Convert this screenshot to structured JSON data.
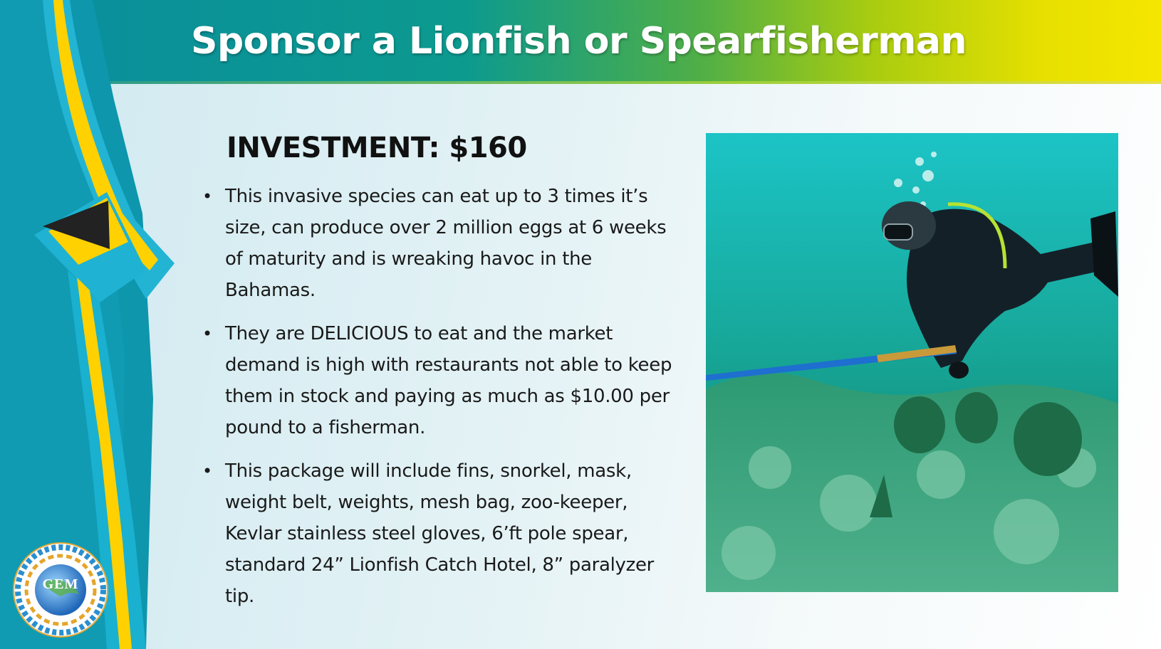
{
  "slide": {
    "title": "Sponsor a Lionfish or Spearfisherman",
    "heading": "INVESTMENT: $160",
    "bullets": [
      "This invasive species can eat up to 3 times it’s size, can produce over 2 million eggs at 6 weeks of maturity and is wreaking havoc in the Bahamas.",
      "They are DELICIOUS to eat and the market demand is high with restaurants not able to keep them in stock and paying as much as $10.00 per pound to a fisherman.",
      "This package will include fins, snorkel, mask, weight belt, weights, mesh bag, zoo-keeper, Kevlar stainless steel gloves, 6’ft pole spear, standard 24” Lionfish Catch Hotel, 8” paralyzer tip."
    ],
    "bullet_glyph": "•",
    "logo_text": "GEM",
    "photo_icon": "scuba-diver-photo",
    "ribbon_icon": "bahamas-flag-ribbon-icon"
  },
  "colors": {
    "aquamarine": "#00abc9",
    "gold": "#ffc72c",
    "black": "#000000",
    "header_start": "#0a8d9d",
    "header_end": "#f5e600"
  }
}
